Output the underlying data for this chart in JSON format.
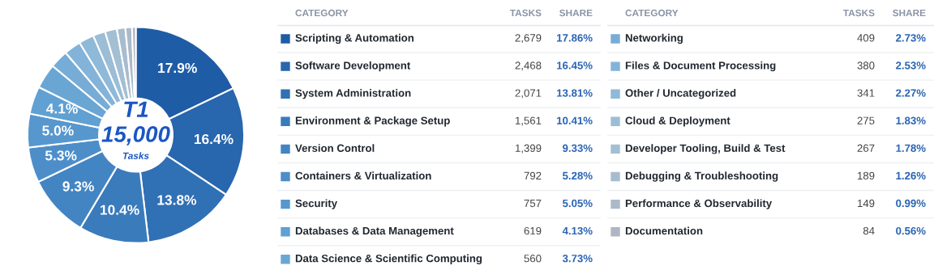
{
  "chart_data": {
    "type": "donut",
    "title": "T1",
    "categories": [
      "Scripting & Automation",
      "Software Development",
      "System Administration",
      "Environment & Package Setup",
      "Version Control",
      "Containers & Virtualization",
      "Security",
      "Databases & Data Management",
      "Data Science & Scientific Computing",
      "Networking",
      "Files & Document Processing",
      "Other / Uncategorized",
      "Cloud & Deployment",
      "Developer Tooling, Build & Test",
      "Debugging & Troubleshooting",
      "Performance & Observability",
      "Documentation"
    ],
    "values": [
      17.86,
      16.45,
      13.81,
      10.41,
      9.33,
      5.28,
      5.05,
      4.13,
      3.73,
      2.73,
      2.53,
      2.27,
      1.83,
      1.78,
      1.26,
      0.99,
      0.56
    ],
    "colors": [
      "#1f5ca6",
      "#2866ae",
      "#3070b5",
      "#3a7bbc",
      "#4385c3",
      "#4d8ec9",
      "#5697ce",
      "#60a0d2",
      "#6aa6d4",
      "#77acd6",
      "#83b3d8",
      "#8fb9d8",
      "#9bbdd6",
      "#a3bfd3",
      "#a8bccf",
      "#acb9c9",
      "#b0b5c2"
    ],
    "value_labels": [
      "17.86%",
      "16.45%",
      "13.81%",
      "10.41%",
      "9.33%",
      "5.28%",
      "5.05%",
      "4.13%",
      "3.73%",
      "2.73%",
      "2.53%",
      "2.27%",
      "1.83%",
      "1.78%",
      "1.26%",
      "0.99%",
      "0.56%"
    ],
    "legend": "right",
    "annotations": [
      "15,000",
      "Tasks",
      "CATEGORY",
      "TASKS",
      "SHARE",
      {
        "text": "17.9%",
        "x": "Scripting & Automation"
      },
      {
        "text": "16.4%",
        "x": "Software Development"
      },
      {
        "text": "13.8%",
        "x": "System Administration"
      },
      {
        "text": "10.4%",
        "x": "Environment & Package Setup"
      },
      {
        "text": "9.3%",
        "x": "Version Control"
      },
      {
        "text": "5.3%",
        "x": "Containers & Virtualization"
      },
      {
        "text": "5.0%",
        "x": "Security"
      },
      {
        "text": "4.1%",
        "x": "Databases & Data Management"
      },
      "2,679",
      "2,468",
      "2,071",
      "1,561",
      "1,399",
      "792",
      "757",
      "619",
      "560",
      "409",
      "380",
      "341",
      "275",
      "267",
      "189",
      "149",
      "84"
    ]
  }
}
